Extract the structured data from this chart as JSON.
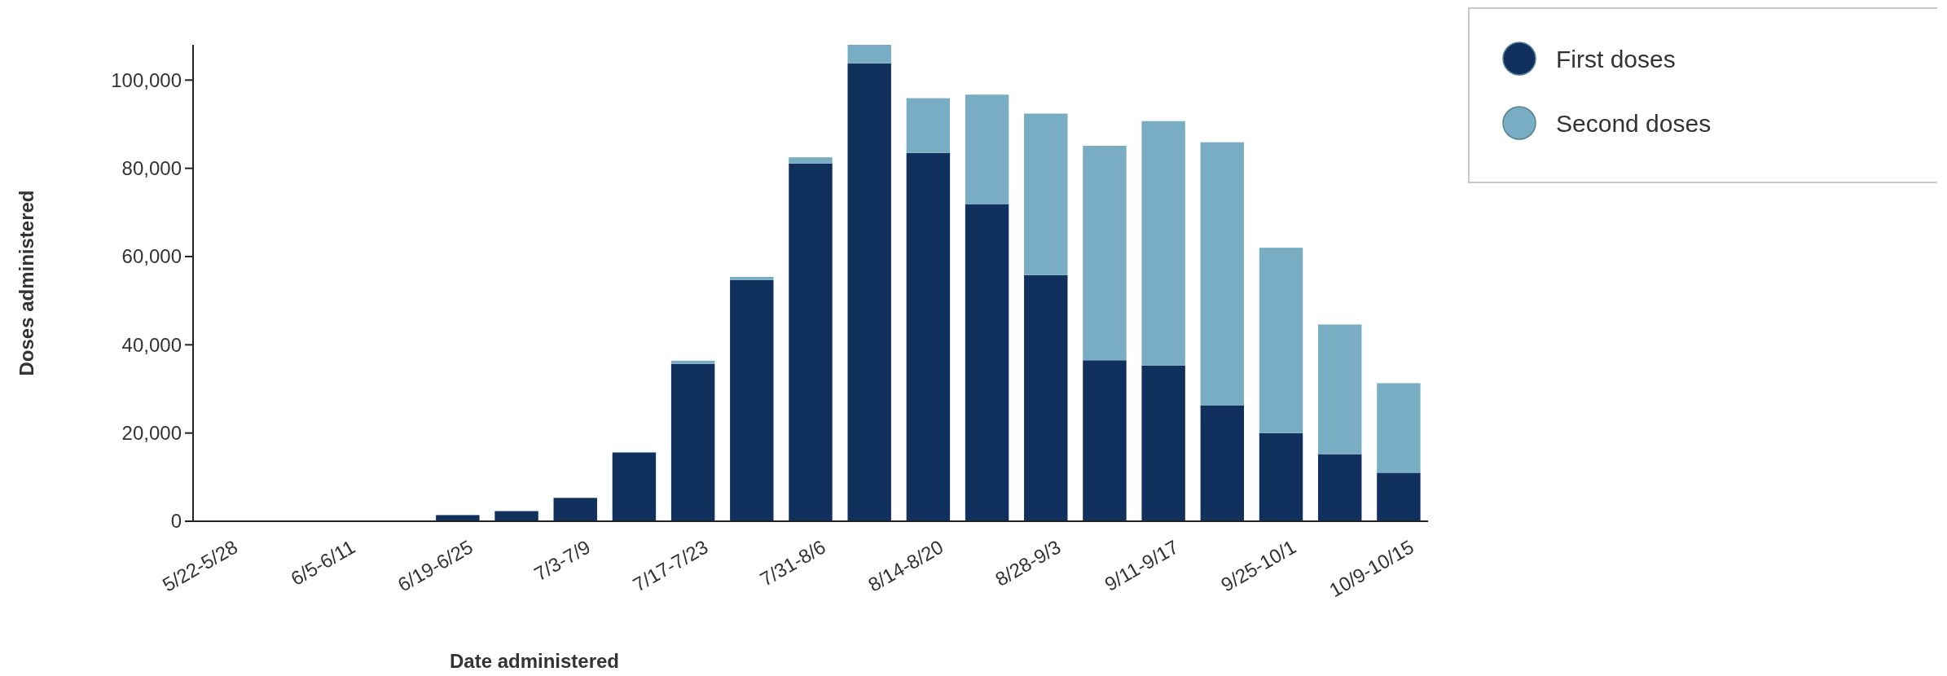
{
  "chart_data": {
    "type": "bar",
    "stacked": true,
    "xlabel": "Date administered",
    "ylabel": "Doses administered",
    "categories": [
      "5/22-5/28",
      null,
      "6/5-6/11",
      null,
      "6/19-6/25",
      null,
      "7/3-7/9",
      null,
      "7/17-7/23",
      null,
      "7/31-8/6",
      null,
      "8/14-8/20",
      null,
      "8/28-9/3",
      null,
      "9/11-9/17",
      null,
      "9/25-10/1",
      null,
      "10/9-10/15"
    ],
    "series": [
      {
        "name": "First doses",
        "color": "#10305d",
        "values": [
          100,
          null,
          null,
          null,
          1400,
          2300,
          5300,
          15600,
          35700,
          54700,
          81100,
          103800,
          83500,
          71900,
          55800,
          36500,
          35300,
          26300,
          20000,
          15200,
          11000
        ]
      },
      {
        "name": "Second doses",
        "color": "#78adc4",
        "values": [
          0,
          0,
          0,
          0,
          0,
          0,
          0,
          100,
          700,
          700,
          1400,
          4200,
          12400,
          24800,
          36600,
          48600,
          55400,
          59600,
          42000,
          29400,
          20300
        ]
      }
    ],
    "ylim": [
      0,
      108000
    ],
    "yticks": [
      {
        "value": 0,
        "label": "0"
      },
      {
        "value": 20000,
        "label": "20,000"
      },
      {
        "value": 40000,
        "label": "40,000"
      },
      {
        "value": 60000,
        "label": "60,000"
      },
      {
        "value": 80000,
        "label": "80,000"
      },
      {
        "value": 100000,
        "label": "100,000"
      }
    ],
    "legend": "top right"
  }
}
